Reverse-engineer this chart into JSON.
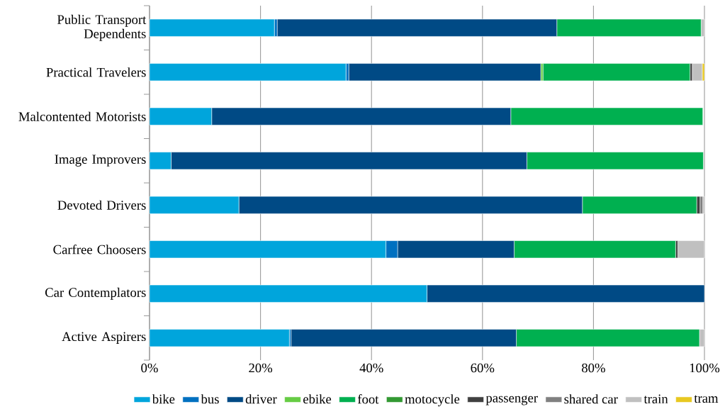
{
  "chart_data": {
    "type": "bar",
    "orientation": "horizontal",
    "stacked": true,
    "categories": [
      "Public Transport Dependents",
      "Practical Travelers",
      "Malcontented Motorists",
      "Image Improvers",
      "Devoted Drivers",
      "Carfree Choosers",
      "Car Contemplators",
      "Active Aspirers"
    ],
    "series": [
      {
        "name": "bike",
        "color": "#00a5dc",
        "values": [
          22.5,
          35.4,
          11.2,
          3.9,
          16.1,
          42.6,
          50.0,
          25.2
        ]
      },
      {
        "name": "bus",
        "color": "#0070c0",
        "values": [
          0.5,
          0.5,
          0,
          0,
          0,
          2.1,
          0,
          0.3
        ]
      },
      {
        "name": "driver",
        "color": "#004a85",
        "values": [
          50.4,
          34.6,
          53.9,
          64.1,
          61.9,
          21.0,
          50.0,
          40.6
        ]
      },
      {
        "name": "ebike",
        "color": "#66cc44",
        "values": [
          0,
          0.4,
          0,
          0,
          0,
          0,
          0,
          0
        ]
      },
      {
        "name": "foot",
        "color": "#00b050",
        "values": [
          26.0,
          26.5,
          34.6,
          31.8,
          20.6,
          29.1,
          0,
          33.0
        ]
      },
      {
        "name": "motocycle",
        "color": "#339933",
        "values": [
          0,
          0,
          0,
          0,
          0,
          0,
          0,
          0
        ]
      },
      {
        "name": "passenger",
        "color": "#404040",
        "values": [
          0,
          0.4,
          0,
          0,
          0.6,
          0.4,
          0,
          0
        ]
      },
      {
        "name": "shared car",
        "color": "#808080",
        "values": [
          0,
          0,
          0,
          0,
          0.5,
          0,
          0,
          0
        ]
      },
      {
        "name": "train",
        "color": "#c0c0c0",
        "values": [
          0.6,
          1.8,
          0,
          0,
          0.3,
          4.8,
          0,
          0.9
        ]
      },
      {
        "name": "tram",
        "color": "#e8c820",
        "values": [
          0,
          0.4,
          0,
          0,
          0,
          0,
          0,
          0
        ]
      }
    ],
    "xlim": [
      0,
      100
    ],
    "xticks": [
      {
        "value": 0,
        "label": "0%"
      },
      {
        "value": 20,
        "label": "20%"
      },
      {
        "value": 40,
        "label": "40%"
      },
      {
        "value": 60,
        "label": "60%"
      },
      {
        "value": 80,
        "label": "80%"
      },
      {
        "value": 100,
        "label": "100%"
      }
    ],
    "grid": "x",
    "legend": "bottom"
  }
}
